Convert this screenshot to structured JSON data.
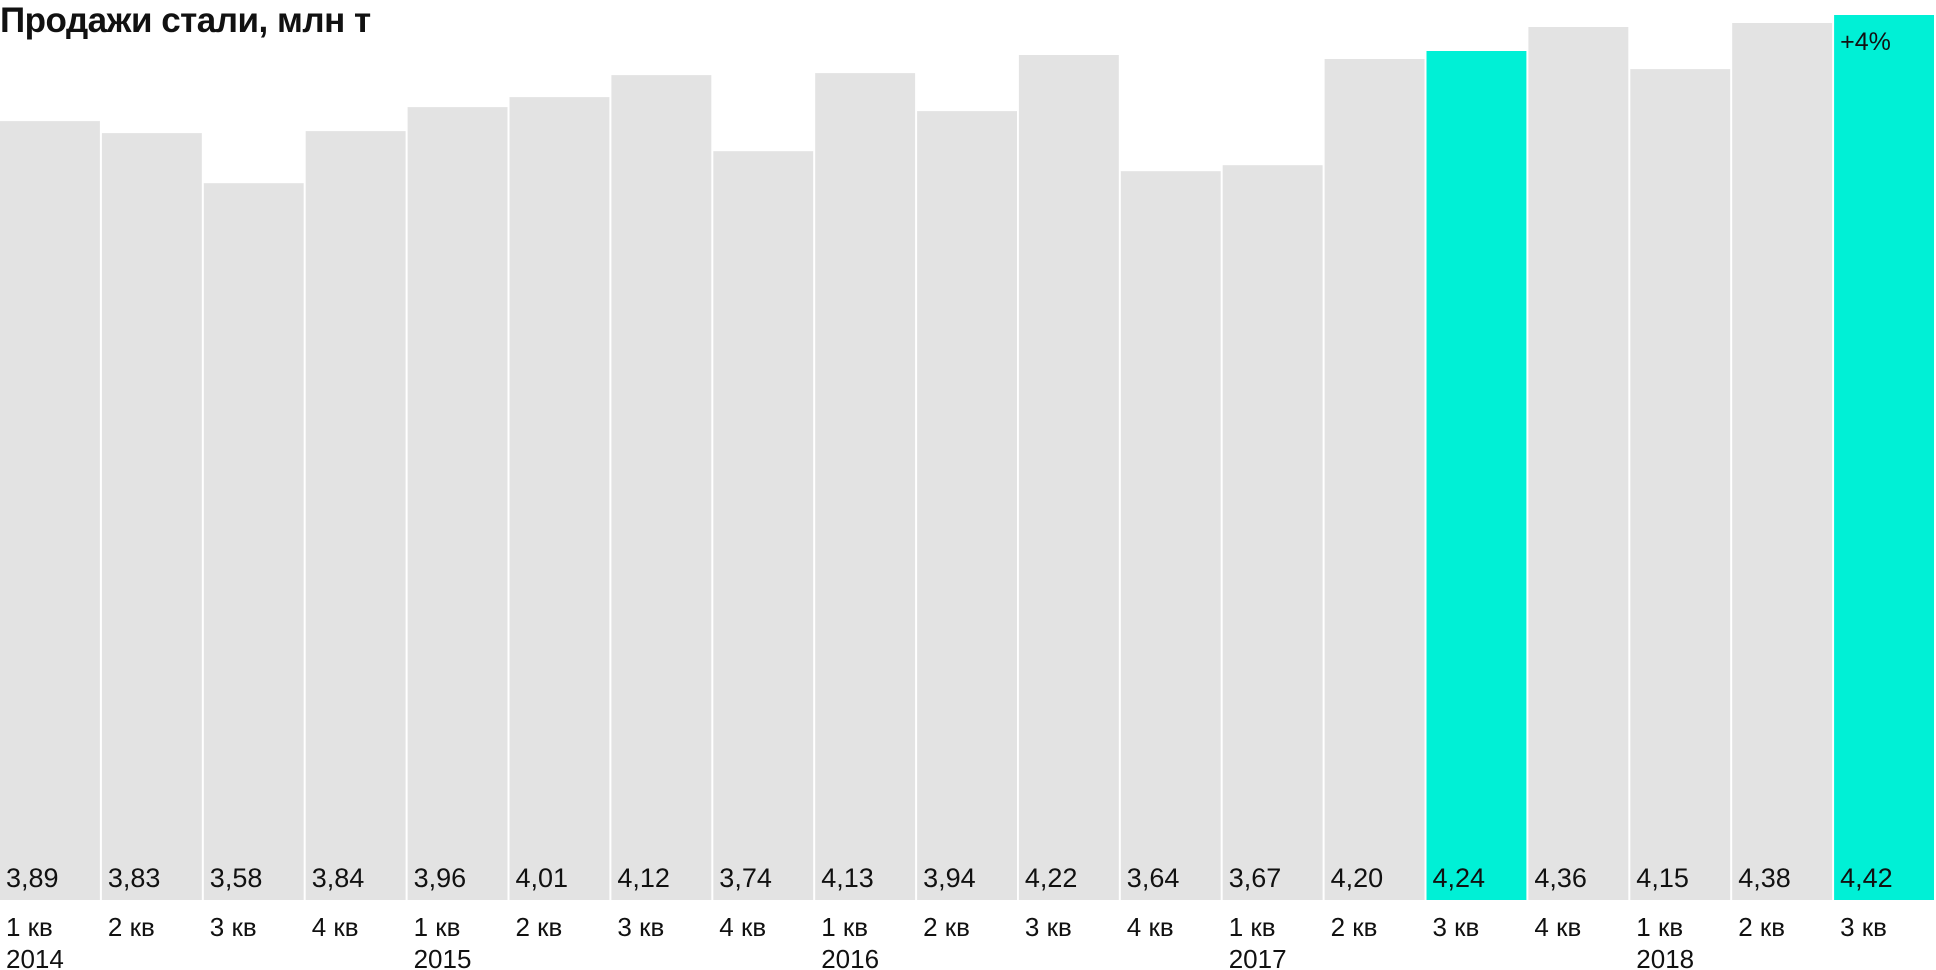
{
  "chart_data": {
    "type": "bar",
    "title": "Продажи стали, млн т",
    "categories": [
      "1 кв",
      "2 кв",
      "3 кв",
      "4 кв",
      "1 кв",
      "2 кв",
      "3 кв",
      "4 кв",
      "1 кв",
      "2 кв",
      "3 кв",
      "4 кв",
      "1 кв",
      "2 кв",
      "3 кв",
      "4 кв",
      "1 кв",
      "2 кв",
      "3 кв"
    ],
    "years": [
      "2014",
      "",
      "",
      "",
      "2015",
      "",
      "",
      "",
      "2016",
      "",
      "",
      "",
      "2017",
      "",
      "",
      "",
      "2018",
      "",
      ""
    ],
    "values": [
      3.89,
      3.83,
      3.58,
      3.84,
      3.96,
      4.01,
      4.12,
      3.74,
      4.13,
      3.94,
      4.22,
      3.64,
      3.67,
      4.2,
      4.24,
      4.36,
      4.15,
      4.38,
      4.42
    ],
    "value_labels": [
      "3,89",
      "3,83",
      "3,58",
      "3,84",
      "3,96",
      "4,01",
      "4,12",
      "3,74",
      "4,13",
      "3,94",
      "4,22",
      "3,64",
      "3,67",
      "4,20",
      "4,24",
      "4,36",
      "4,15",
      "4,38",
      "4,42"
    ],
    "highlighted": [
      14,
      18
    ],
    "annotation": {
      "bar_index": 18,
      "text": "+4%"
    },
    "ylim": [
      0,
      4.42
    ],
    "xlabel": "",
    "ylabel": "",
    "grid": false,
    "colors": {
      "bar": "#e3e3e3",
      "highlight": "#00f0d6",
      "text": "#111111"
    }
  }
}
